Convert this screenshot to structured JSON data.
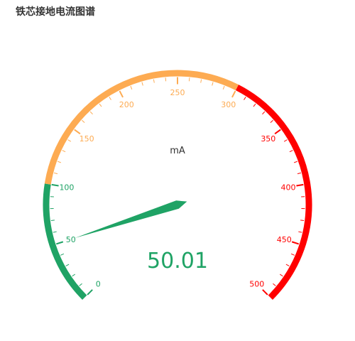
{
  "title": "铁芯接地电流图谱",
  "chart_data": {
    "type": "gauge",
    "min": 0,
    "max": 500,
    "unit": "mA",
    "value": 50.01,
    "value_display": "50.01",
    "tick_labels": [
      "0",
      "50",
      "100",
      "150",
      "200",
      "250",
      "300",
      "350",
      "400",
      "450",
      "500"
    ],
    "bands": [
      {
        "from": 0,
        "to": 100,
        "color": "#1fa365"
      },
      {
        "from": 100,
        "to": 300,
        "color": "#fdab52"
      },
      {
        "from": 300,
        "to": 500,
        "color": "#ff0000"
      }
    ],
    "pointer_color": "#1fa365",
    "value_color": "#1fa365"
  }
}
